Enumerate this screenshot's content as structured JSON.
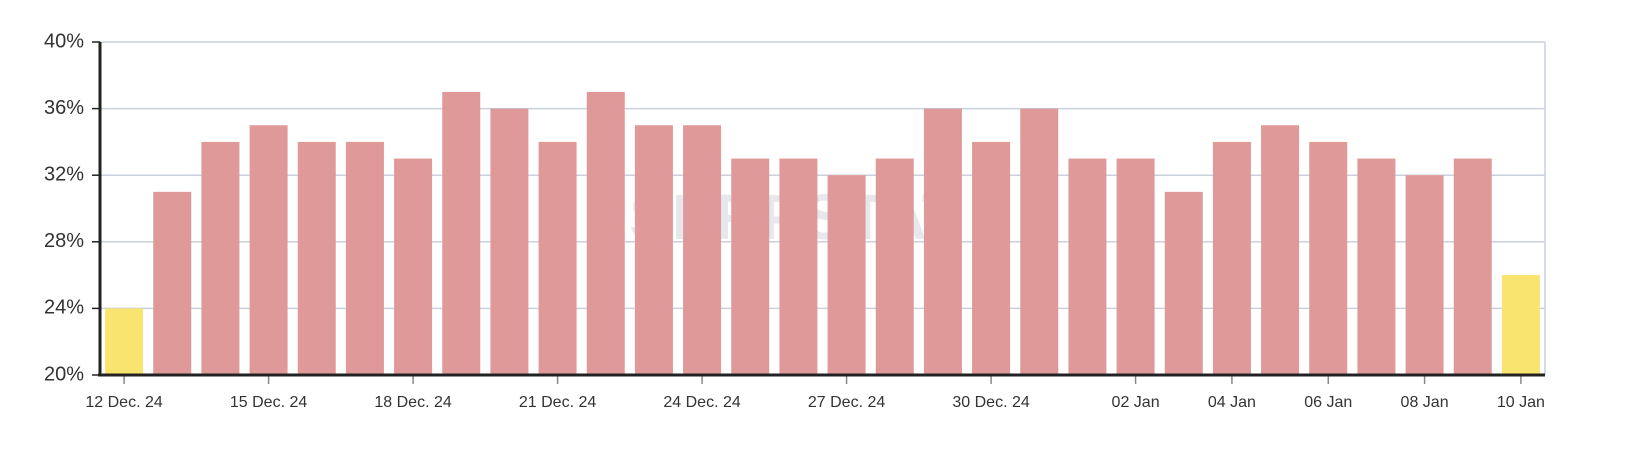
{
  "chart_data": {
    "type": "bar",
    "watermark": "SERPSTAT",
    "categories": [
      "12 Dec. 24",
      null,
      null,
      "15 Dec. 24",
      null,
      null,
      "18 Dec. 24",
      null,
      null,
      "21 Dec. 24",
      null,
      null,
      "24 Dec. 24",
      null,
      null,
      "27 Dec. 24",
      null,
      null,
      "30 Dec. 24",
      null,
      null,
      "02 Jan",
      null,
      "04 Jan",
      null,
      "06 Jan",
      null,
      "08 Jan",
      null,
      "10 Jan"
    ],
    "values": [
      24,
      31,
      34,
      35,
      34,
      34,
      33,
      37,
      36,
      34,
      37,
      35,
      35,
      33,
      33,
      32,
      33,
      36,
      34,
      36,
      33,
      33,
      31,
      34,
      35,
      34,
      33,
      32,
      33,
      26
    ],
    "colors": [
      "#f9e46f",
      "#e09999",
      "#e09999",
      "#e09999",
      "#e09999",
      "#e09999",
      "#e09999",
      "#e09999",
      "#e09999",
      "#e09999",
      "#e09999",
      "#e09999",
      "#e09999",
      "#e09999",
      "#e09999",
      "#e09999",
      "#e09999",
      "#e09999",
      "#e09999",
      "#e09999",
      "#e09999",
      "#e09999",
      "#e09999",
      "#e09999",
      "#e09999",
      "#e09999",
      "#e09999",
      "#e09999",
      "#e09999",
      "#f9e46f"
    ],
    "ylim": [
      20,
      40
    ],
    "yticks": [
      {
        "value": 20,
        "label": "20%"
      },
      {
        "value": 24,
        "label": "24%"
      },
      {
        "value": 28,
        "label": "28%"
      },
      {
        "value": 32,
        "label": "32%"
      },
      {
        "value": 36,
        "label": "36%"
      },
      {
        "value": 40,
        "label": "40%"
      }
    ],
    "grid": true
  }
}
